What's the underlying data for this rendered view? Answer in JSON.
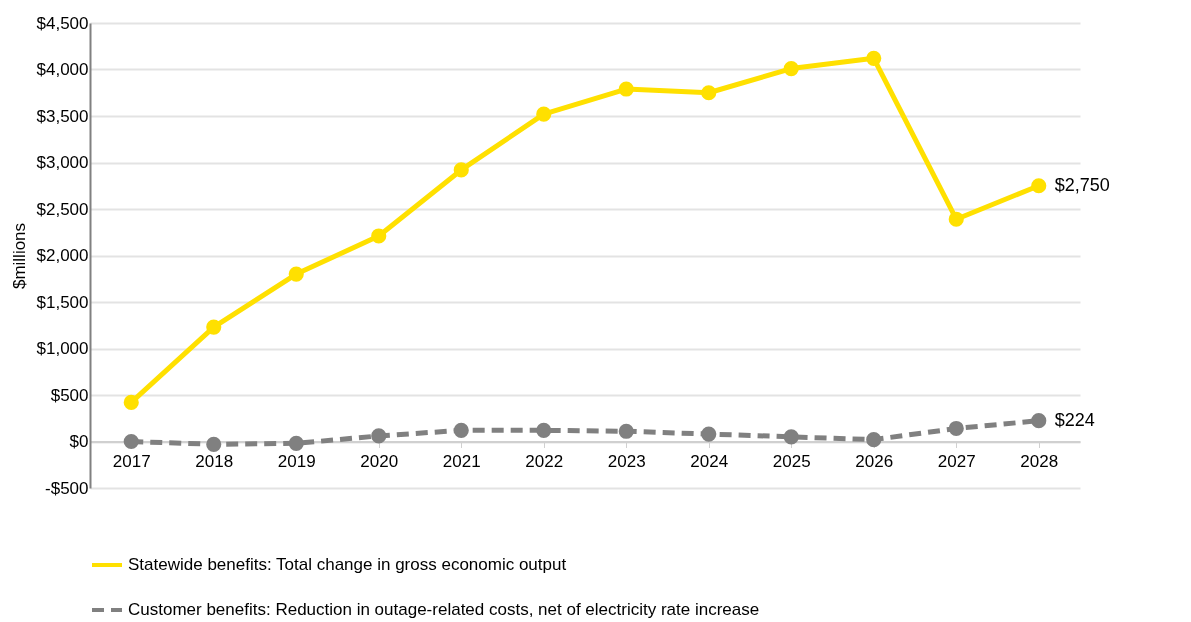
{
  "chart_data": {
    "type": "line",
    "ylabel": "$millions",
    "categories": [
      "2017",
      "2018",
      "2019",
      "2020",
      "2021",
      "2022",
      "2023",
      "2024",
      "2025",
      "2026",
      "2027",
      "2028"
    ],
    "series": [
      {
        "name": "Statewide benefits: Total change in gross economic output",
        "color": "#ffe000",
        "line_style": "solid",
        "values": [
          420,
          1230,
          1800,
          2210,
          2920,
          3520,
          3790,
          3750,
          4010,
          4120,
          2390,
          2750
        ],
        "value_labels": [
          null,
          null,
          null,
          null,
          null,
          null,
          null,
          null,
          null,
          null,
          null,
          "$2,750"
        ]
      },
      {
        "name": "Customer benefits: Reduction in outage-related costs, net of electricity rate increase",
        "color": "#808080",
        "line_style": "dashed",
        "values": [
          0,
          -30,
          -20,
          60,
          120,
          120,
          110,
          80,
          50,
          20,
          140,
          224
        ],
        "value_labels": [
          null,
          null,
          null,
          null,
          null,
          null,
          null,
          null,
          null,
          null,
          null,
          "$224"
        ]
      }
    ],
    "ylim": [
      -500,
      4500
    ],
    "yticks": [
      {
        "value": -500,
        "label": "-$500"
      },
      {
        "value": 0,
        "label": "$0"
      },
      {
        "value": 500,
        "label": "$500"
      },
      {
        "value": 1000,
        "label": "$1,000"
      },
      {
        "value": 1500,
        "label": "$1,500"
      },
      {
        "value": 2000,
        "label": "$2,000"
      },
      {
        "value": 2500,
        "label": "$2,500"
      },
      {
        "value": 3000,
        "label": "$3,000"
      },
      {
        "value": 3500,
        "label": "$3,500"
      },
      {
        "value": 4000,
        "label": "$4,000"
      },
      {
        "value": 4500,
        "label": "$4,500"
      }
    ],
    "grid": "y",
    "legend": "bottom",
    "marker": "circle"
  }
}
